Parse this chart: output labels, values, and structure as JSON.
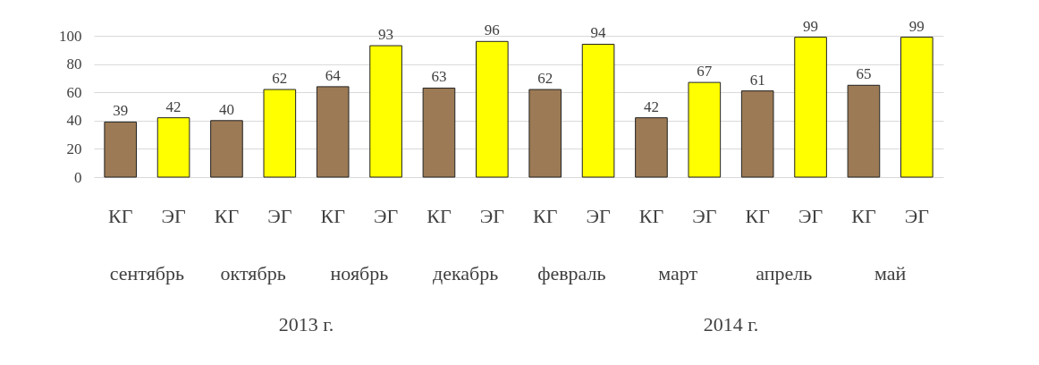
{
  "chart_data": {
    "type": "bar",
    "categories": [
      "КГ",
      "ЭГ",
      "КГ",
      "ЭГ",
      "КГ",
      "ЭГ",
      "КГ",
      "ЭГ",
      "КГ",
      "ЭГ",
      "КГ",
      "ЭГ",
      "КГ",
      "ЭГ",
      "КГ",
      "ЭГ"
    ],
    "values": [
      39,
      42,
      40,
      62,
      64,
      93,
      63,
      96,
      62,
      94,
      42,
      67,
      61,
      99,
      65,
      99
    ],
    "colors": [
      "#9c7a55",
      "#ffff00",
      "#9c7a55",
      "#ffff00",
      "#9c7a55",
      "#ffff00",
      "#9c7a55",
      "#ffff00",
      "#9c7a55",
      "#ffff00",
      "#9c7a55",
      "#ffff00",
      "#9c7a55",
      "#ffff00",
      "#9c7a55",
      "#ffff00"
    ],
    "ylim": [
      0,
      100
    ],
    "yticks": [
      0,
      20,
      40,
      60,
      80,
      100
    ],
    "grid": "y",
    "data_labels": true,
    "annotations": [
      "сентябрь",
      "октябрь",
      "ноябрь",
      "декабрь",
      "февраль",
      "март",
      "апрель",
      "май",
      "2013 г.",
      "2014 г."
    ]
  }
}
